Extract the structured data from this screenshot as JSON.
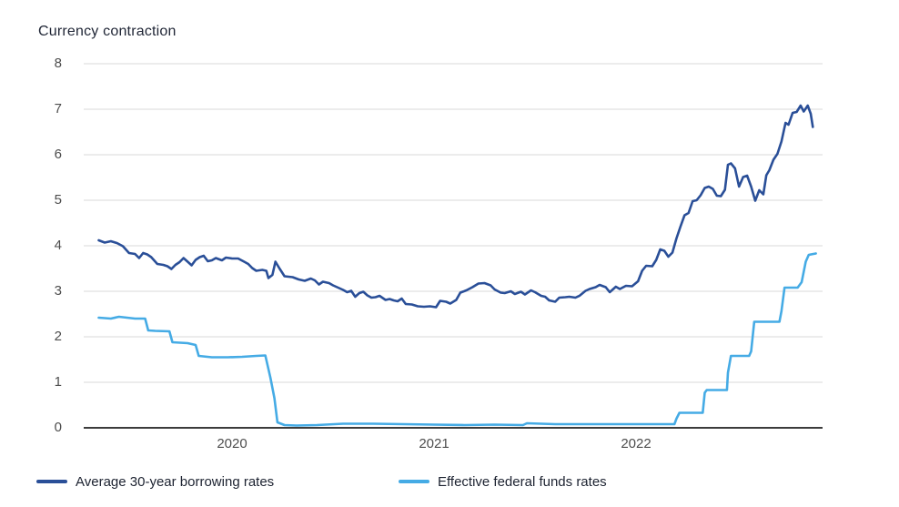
{
  "title": "Currency contraction",
  "colors": {
    "borrowing_line": "#2a4f98",
    "fed_funds_line": "#45abe5",
    "gridline": "#d9d9d9",
    "zero_axis": "#3c3c3c",
    "tick_text": "#4d4d4d",
    "heading_text": "#1f2535"
  },
  "legend": [
    {
      "label": "Average 30-year borrowing rates",
      "color": "#2a4f98"
    },
    {
      "label": "Effective federal funds rates",
      "color": "#45abe5"
    }
  ],
  "chart_data": {
    "type": "line",
    "title": "Currency contraction",
    "xlabel": "",
    "ylabel": "",
    "grid": "horizontal",
    "legend_position": "bottom",
    "xlim": [
      2019.3,
      2022.95
    ],
    "ylim": [
      0,
      8
    ],
    "x_ticks": [
      2020,
      2021,
      2022
    ],
    "y_ticks": [
      8,
      7,
      6,
      5,
      4,
      3,
      2,
      1,
      0
    ],
    "series": [
      {
        "name": "Average 30-year borrowing rates",
        "id": "borrowing-rates",
        "color": "#2a4f98",
        "points": [
          [
            2019.34,
            4.12
          ],
          [
            2019.37,
            4.07
          ],
          [
            2019.4,
            4.1
          ],
          [
            2019.43,
            4.06
          ],
          [
            2019.46,
            3.99
          ],
          [
            2019.49,
            3.84
          ],
          [
            2019.52,
            3.82
          ],
          [
            2019.54,
            3.73
          ],
          [
            2019.56,
            3.84
          ],
          [
            2019.58,
            3.81
          ],
          [
            2019.6,
            3.75
          ],
          [
            2019.63,
            3.6
          ],
          [
            2019.66,
            3.58
          ],
          [
            2019.68,
            3.55
          ],
          [
            2019.7,
            3.49
          ],
          [
            2019.72,
            3.58
          ],
          [
            2019.74,
            3.64
          ],
          [
            2019.76,
            3.73
          ],
          [
            2019.78,
            3.65
          ],
          [
            2019.8,
            3.57
          ],
          [
            2019.82,
            3.69
          ],
          [
            2019.84,
            3.75
          ],
          [
            2019.86,
            3.78
          ],
          [
            2019.88,
            3.66
          ],
          [
            2019.9,
            3.68
          ],
          [
            2019.92,
            3.73
          ],
          [
            2019.95,
            3.68
          ],
          [
            2019.97,
            3.74
          ],
          [
            2020.0,
            3.72
          ],
          [
            2020.03,
            3.72
          ],
          [
            2020.06,
            3.65
          ],
          [
            2020.08,
            3.6
          ],
          [
            2020.1,
            3.51
          ],
          [
            2020.12,
            3.45
          ],
          [
            2020.15,
            3.47
          ],
          [
            2020.17,
            3.45
          ],
          [
            2020.18,
            3.29
          ],
          [
            2020.2,
            3.36
          ],
          [
            2020.215,
            3.65
          ],
          [
            2020.235,
            3.5
          ],
          [
            2020.26,
            3.33
          ],
          [
            2020.3,
            3.31
          ],
          [
            2020.33,
            3.26
          ],
          [
            2020.36,
            3.23
          ],
          [
            2020.39,
            3.28
          ],
          [
            2020.41,
            3.24
          ],
          [
            2020.43,
            3.15
          ],
          [
            2020.45,
            3.21
          ],
          [
            2020.48,
            3.18
          ],
          [
            2020.5,
            3.13
          ],
          [
            2020.53,
            3.07
          ],
          [
            2020.55,
            3.03
          ],
          [
            2020.57,
            2.98
          ],
          [
            2020.59,
            3.01
          ],
          [
            2020.61,
            2.88
          ],
          [
            2020.63,
            2.96
          ],
          [
            2020.65,
            2.99
          ],
          [
            2020.67,
            2.91
          ],
          [
            2020.69,
            2.86
          ],
          [
            2020.71,
            2.87
          ],
          [
            2020.73,
            2.9
          ],
          [
            2020.76,
            2.81
          ],
          [
            2020.78,
            2.83
          ],
          [
            2020.8,
            2.8
          ],
          [
            2020.82,
            2.78
          ],
          [
            2020.84,
            2.84
          ],
          [
            2020.86,
            2.72
          ],
          [
            2020.89,
            2.71
          ],
          [
            2020.92,
            2.67
          ],
          [
            2020.95,
            2.66
          ],
          [
            2020.98,
            2.67
          ],
          [
            2021.01,
            2.65
          ],
          [
            2021.03,
            2.79
          ],
          [
            2021.06,
            2.77
          ],
          [
            2021.08,
            2.73
          ],
          [
            2021.11,
            2.81
          ],
          [
            2021.13,
            2.97
          ],
          [
            2021.16,
            3.02
          ],
          [
            2021.19,
            3.09
          ],
          [
            2021.22,
            3.17
          ],
          [
            2021.25,
            3.18
          ],
          [
            2021.28,
            3.13
          ],
          [
            2021.3,
            3.04
          ],
          [
            2021.33,
            2.97
          ],
          [
            2021.35,
            2.96
          ],
          [
            2021.38,
            3.0
          ],
          [
            2021.4,
            2.94
          ],
          [
            2021.43,
            2.99
          ],
          [
            2021.45,
            2.93
          ],
          [
            2021.48,
            3.02
          ],
          [
            2021.5,
            2.98
          ],
          [
            2021.53,
            2.9
          ],
          [
            2021.55,
            2.88
          ],
          [
            2021.57,
            2.8
          ],
          [
            2021.6,
            2.77
          ],
          [
            2021.62,
            2.86
          ],
          [
            2021.65,
            2.87
          ],
          [
            2021.67,
            2.88
          ],
          [
            2021.7,
            2.86
          ],
          [
            2021.72,
            2.9
          ],
          [
            2021.75,
            3.01
          ],
          [
            2021.77,
            3.05
          ],
          [
            2021.8,
            3.09
          ],
          [
            2021.82,
            3.14
          ],
          [
            2021.85,
            3.09
          ],
          [
            2021.87,
            2.98
          ],
          [
            2021.9,
            3.1
          ],
          [
            2021.92,
            3.05
          ],
          [
            2021.95,
            3.12
          ],
          [
            2021.98,
            3.11
          ],
          [
            2022.01,
            3.22
          ],
          [
            2022.03,
            3.45
          ],
          [
            2022.05,
            3.56
          ],
          [
            2022.08,
            3.55
          ],
          [
            2022.1,
            3.69
          ],
          [
            2022.12,
            3.92
          ],
          [
            2022.14,
            3.89
          ],
          [
            2022.16,
            3.76
          ],
          [
            2022.18,
            3.85
          ],
          [
            2022.2,
            4.16
          ],
          [
            2022.22,
            4.42
          ],
          [
            2022.24,
            4.67
          ],
          [
            2022.26,
            4.72
          ],
          [
            2022.28,
            4.98
          ],
          [
            2022.3,
            5.0
          ],
          [
            2022.32,
            5.11
          ],
          [
            2022.34,
            5.27
          ],
          [
            2022.36,
            5.3
          ],
          [
            2022.38,
            5.25
          ],
          [
            2022.4,
            5.1
          ],
          [
            2022.42,
            5.09
          ],
          [
            2022.44,
            5.23
          ],
          [
            2022.455,
            5.78
          ],
          [
            2022.47,
            5.81
          ],
          [
            2022.49,
            5.7
          ],
          [
            2022.51,
            5.3
          ],
          [
            2022.53,
            5.51
          ],
          [
            2022.55,
            5.54
          ],
          [
            2022.57,
            5.3
          ],
          [
            2022.59,
            4.99
          ],
          [
            2022.61,
            5.22
          ],
          [
            2022.63,
            5.13
          ],
          [
            2022.645,
            5.55
          ],
          [
            2022.66,
            5.66
          ],
          [
            2022.68,
            5.89
          ],
          [
            2022.7,
            6.02
          ],
          [
            2022.72,
            6.29
          ],
          [
            2022.74,
            6.7
          ],
          [
            2022.755,
            6.66
          ],
          [
            2022.775,
            6.92
          ],
          [
            2022.795,
            6.94
          ],
          [
            2022.815,
            7.08
          ],
          [
            2022.83,
            6.95
          ],
          [
            2022.85,
            7.08
          ],
          [
            2022.865,
            6.9
          ],
          [
            2022.875,
            6.61
          ]
        ]
      },
      {
        "name": "Effective federal funds rates",
        "id": "fed-funds",
        "color": "#45abe5",
        "points": [
          [
            2019.34,
            2.42
          ],
          [
            2019.4,
            2.4
          ],
          [
            2019.44,
            2.44
          ],
          [
            2019.48,
            2.42
          ],
          [
            2019.52,
            2.4
          ],
          [
            2019.57,
            2.4
          ],
          [
            2019.585,
            2.14
          ],
          [
            2019.62,
            2.13
          ],
          [
            2019.69,
            2.12
          ],
          [
            2019.705,
            1.88
          ],
          [
            2019.78,
            1.86
          ],
          [
            2019.82,
            1.82
          ],
          [
            2019.835,
            1.58
          ],
          [
            2019.9,
            1.55
          ],
          [
            2019.98,
            1.55
          ],
          [
            2020.05,
            1.56
          ],
          [
            2020.12,
            1.58
          ],
          [
            2020.165,
            1.59
          ],
          [
            2020.19,
            1.1
          ],
          [
            2020.21,
            0.65
          ],
          [
            2020.225,
            0.12
          ],
          [
            2020.26,
            0.06
          ],
          [
            2020.32,
            0.05
          ],
          [
            2020.42,
            0.06
          ],
          [
            2020.55,
            0.09
          ],
          [
            2020.7,
            0.09
          ],
          [
            2020.85,
            0.08
          ],
          [
            2021.0,
            0.07
          ],
          [
            2021.15,
            0.06
          ],
          [
            2021.3,
            0.07
          ],
          [
            2021.44,
            0.06
          ],
          [
            2021.46,
            0.1
          ],
          [
            2021.6,
            0.08
          ],
          [
            2021.75,
            0.08
          ],
          [
            2021.9,
            0.08
          ],
          [
            2022.05,
            0.08
          ],
          [
            2022.19,
            0.08
          ],
          [
            2022.2,
            0.2
          ],
          [
            2022.215,
            0.33
          ],
          [
            2022.33,
            0.33
          ],
          [
            2022.34,
            0.77
          ],
          [
            2022.35,
            0.83
          ],
          [
            2022.45,
            0.83
          ],
          [
            2022.455,
            1.21
          ],
          [
            2022.47,
            1.58
          ],
          [
            2022.56,
            1.58
          ],
          [
            2022.57,
            1.68
          ],
          [
            2022.585,
            2.33
          ],
          [
            2022.71,
            2.33
          ],
          [
            2022.72,
            2.56
          ],
          [
            2022.735,
            3.08
          ],
          [
            2022.8,
            3.08
          ],
          [
            2022.82,
            3.2
          ],
          [
            2022.84,
            3.65
          ],
          [
            2022.855,
            3.8
          ],
          [
            2022.89,
            3.83
          ]
        ]
      }
    ]
  }
}
